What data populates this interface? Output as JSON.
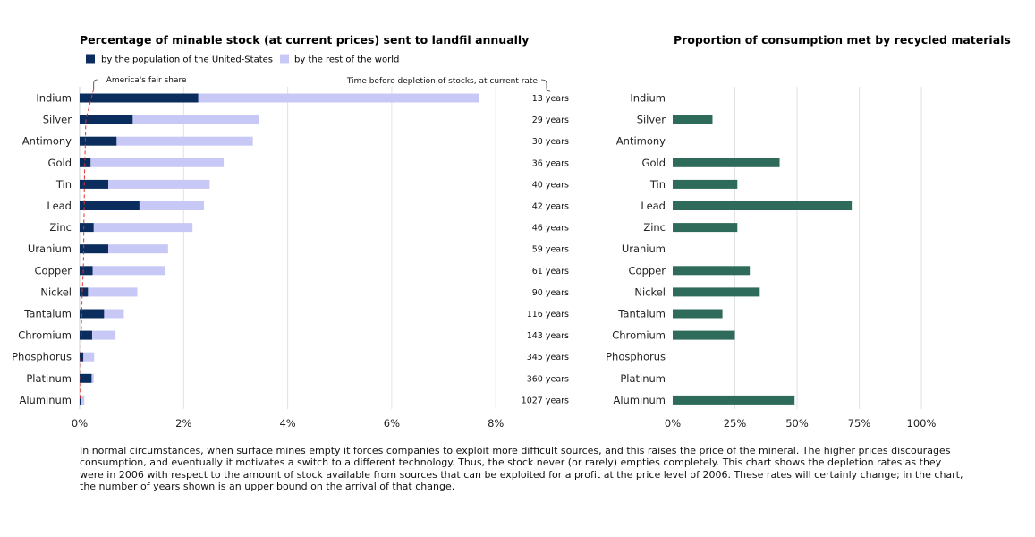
{
  "chart_data": [
    {
      "type": "bar",
      "stacked": true,
      "orientation": "horizontal",
      "title": "Percentage of minable stock (at current prices) sent to landfil annually",
      "categories": [
        "Indium",
        "Silver",
        "Antimony",
        "Gold",
        "Tin",
        "Lead",
        "Zinc",
        "Uranium",
        "Copper",
        "Nickel",
        "Tantalum",
        "Chromium",
        "Phosphorus",
        "Platinum",
        "Aluminum"
      ],
      "series": [
        {
          "name": "by the population of the United-States",
          "color": "#0b2d5e",
          "values": [
            2.28,
            1.02,
            0.71,
            0.21,
            0.55,
            1.15,
            0.27,
            0.55,
            0.25,
            0.16,
            0.47,
            0.24,
            0.07,
            0.23,
            0.02
          ]
        },
        {
          "name": "by the rest of the world",
          "color": "#c8c8f6",
          "values": [
            5.4,
            2.43,
            2.62,
            2.56,
            1.95,
            1.24,
            1.9,
            1.15,
            1.39,
            0.95,
            0.38,
            0.45,
            0.21,
            0.04,
            0.07
          ]
        }
      ],
      "xticks": [
        "0%",
        "2%",
        "4%",
        "6%",
        "8%"
      ],
      "xlim": [
        0,
        8
      ],
      "grid": true,
      "legend": "top-left",
      "fair_share": {
        "label": "America's fair share",
        "values": [
          0.27,
          0.12,
          0.11,
          0.1,
          0.09,
          0.09,
          0.08,
          0.08,
          0.07,
          0.05,
          0.04,
          0.03,
          0.02,
          0.02,
          0.01
        ],
        "color": "#e0332e"
      },
      "depletion": {
        "label": "Time before depletion of stocks, at current rate",
        "values": [
          "13 years",
          "29 years",
          "30 years",
          "36 years",
          "40 years",
          "42 years",
          "46 years",
          "59 years",
          "61 years",
          "90 years",
          "116 years",
          "143 years",
          "345 years",
          "360 years",
          "1027 years"
        ]
      }
    },
    {
      "type": "bar",
      "orientation": "horizontal",
      "title": "Proportion of consumption met by recycled materials",
      "categories": [
        "Indium",
        "Silver",
        "Antimony",
        "Gold",
        "Tin",
        "Lead",
        "Zinc",
        "Uranium",
        "Copper",
        "Nickel",
        "Tantalum",
        "Chromium",
        "Phosphorus",
        "Platinum",
        "Aluminum"
      ],
      "values": [
        0,
        16,
        0,
        43,
        26,
        72,
        26,
        0,
        31,
        35,
        20,
        25,
        0,
        0,
        49
      ],
      "color": "#2e6b5a",
      "xticks": [
        "0%",
        "25%",
        "50%",
        "75%",
        "100%"
      ],
      "xlim": [
        0,
        100
      ],
      "grid": true
    }
  ],
  "caption": "In normal circumstances, when surface mines empty it forces companies to exploit more difficult sources, and this raises the price of the mineral. The higher prices discourages consumption, and eventually it motivates a switch to a different technology. Thus, the stock never (or rarely) empties completely. This chart shows the depletion rates as they were in 2006 with respect to the amount of stock available from sources that can be exploited for a profit at the price level of 2006. These rates will certainly change; in the chart, the number of years shown is an upper bound on the arrival of that change."
}
